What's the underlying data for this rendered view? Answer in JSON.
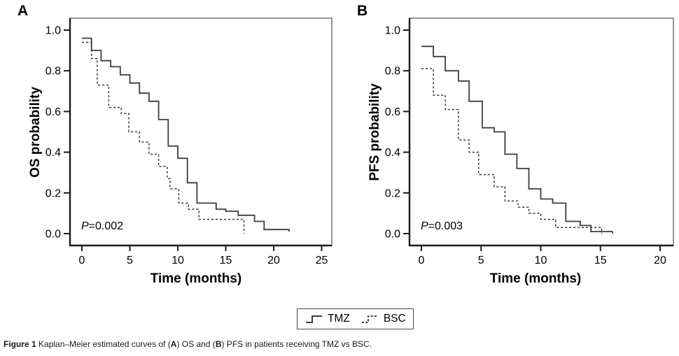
{
  "figure": {
    "caption": {
      "parts": [
        {
          "text": "Figure 1 ",
          "bold": true
        },
        {
          "text": "Kaplan–Meier estimated curves of (",
          "bold": false
        },
        {
          "text": "A",
          "bold": true
        },
        {
          "text": ") OS and (",
          "bold": false
        },
        {
          "text": "B",
          "bold": true
        },
        {
          "text": ") PFS in patients receiving TMZ vs BSC.",
          "bold": false
        }
      ]
    },
    "legend": {
      "items": [
        {
          "label": "TMZ",
          "line_style": "solid"
        },
        {
          "label": "BSC",
          "line_style": "dashed"
        }
      ]
    },
    "colors": {
      "curve": "#3d3d3d",
      "axis": "#1a1a1a",
      "frame": "#8a8a8a",
      "text": "#000000"
    }
  },
  "chart_data": [
    {
      "type": "line",
      "subtype": "kaplan_meier_step",
      "panel_label": "A",
      "xlabel": "Time (months)",
      "ylabel": "OS probability",
      "xlim": [
        0,
        25
      ],
      "ylim": [
        0.0,
        1.0
      ],
      "x_ticks": [
        0,
        5,
        10,
        15,
        20,
        25
      ],
      "y_ticks": [
        1.0,
        0.8,
        0.6,
        0.4,
        0.2,
        0.0
      ],
      "grid": false,
      "annotation": {
        "italic": "P",
        "text": "=0.002"
      },
      "series": [
        {
          "name": "TMZ",
          "line_style": "solid",
          "points": [
            [
              0,
              0.96
            ],
            [
              1,
              0.9
            ],
            [
              2,
              0.85
            ],
            [
              3,
              0.82
            ],
            [
              4,
              0.78
            ],
            [
              5,
              0.74
            ],
            [
              6,
              0.69
            ],
            [
              7,
              0.65
            ],
            [
              8,
              0.56
            ],
            [
              9,
              0.43
            ],
            [
              10,
              0.37
            ],
            [
              11,
              0.25
            ],
            [
              12,
              0.15
            ],
            [
              14,
              0.12
            ],
            [
              15,
              0.11
            ],
            [
              16.3,
              0.09
            ],
            [
              18,
              0.06
            ],
            [
              19,
              0.02
            ],
            [
              21.6,
              0.01
            ]
          ]
        },
        {
          "name": "BSC",
          "line_style": "dashed",
          "points": [
            [
              0,
              0.94
            ],
            [
              1,
              0.86
            ],
            [
              1.6,
              0.73
            ],
            [
              2.8,
              0.62
            ],
            [
              4.1,
              0.59
            ],
            [
              4.9,
              0.5
            ],
            [
              6,
              0.45
            ],
            [
              7,
              0.39
            ],
            [
              8,
              0.33
            ],
            [
              8.9,
              0.27
            ],
            [
              9.2,
              0.22
            ],
            [
              10.1,
              0.15
            ],
            [
              11.1,
              0.12
            ],
            [
              12.2,
              0.07
            ],
            [
              16.9,
              0.0
            ]
          ]
        }
      ]
    },
    {
      "type": "line",
      "subtype": "kaplan_meier_step",
      "panel_label": "B",
      "xlabel": "Time (months)",
      "ylabel": "PFS probability",
      "xlim": [
        0,
        20
      ],
      "ylim": [
        0.0,
        1.0
      ],
      "x_ticks": [
        0,
        5,
        10,
        15,
        20
      ],
      "y_ticks": [
        1.0,
        0.8,
        0.6,
        0.4,
        0.2,
        0.0
      ],
      "grid": false,
      "annotation": {
        "italic": "P",
        "text": "=0.003"
      },
      "series": [
        {
          "name": "TMZ",
          "line_style": "solid",
          "points": [
            [
              0,
              0.92
            ],
            [
              1,
              0.87
            ],
            [
              2,
              0.8
            ],
            [
              3.1,
              0.75
            ],
            [
              4,
              0.65
            ],
            [
              5.1,
              0.52
            ],
            [
              6.1,
              0.5
            ],
            [
              7,
              0.39
            ],
            [
              8,
              0.32
            ],
            [
              9,
              0.22
            ],
            [
              10,
              0.17
            ],
            [
              11,
              0.15
            ],
            [
              12.1,
              0.06
            ],
            [
              13.3,
              0.04
            ],
            [
              14.2,
              0.01
            ],
            [
              16,
              0.0
            ]
          ]
        },
        {
          "name": "BSC",
          "line_style": "dashed",
          "points": [
            [
              0,
              0.81
            ],
            [
              1,
              0.68
            ],
            [
              2,
              0.61
            ],
            [
              3.1,
              0.46
            ],
            [
              4,
              0.4
            ],
            [
              4.8,
              0.29
            ],
            [
              6.1,
              0.23
            ],
            [
              7,
              0.16
            ],
            [
              8.1,
              0.13
            ],
            [
              9,
              0.1
            ],
            [
              10,
              0.07
            ],
            [
              11.25,
              0.03
            ],
            [
              15.1,
              0.0
            ]
          ]
        }
      ]
    }
  ]
}
